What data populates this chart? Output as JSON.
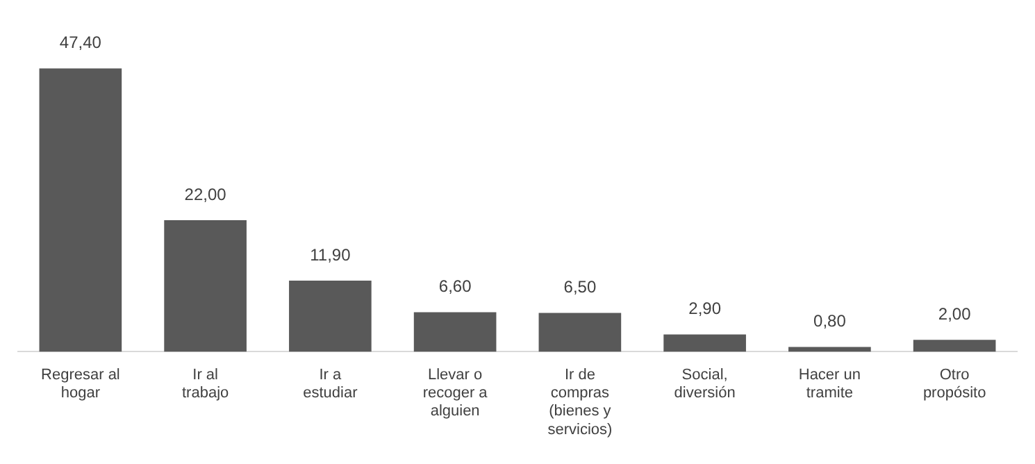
{
  "chart_data": {
    "type": "bar",
    "categories": [
      "Regresar al hogar",
      "Ir al trabajo",
      "Ir a estudiar",
      "Llevar o recoger a alguien",
      "Ir de compras (bienes y servicios)",
      "Social, diversión",
      "Hacer un tramite",
      "Otro propósito"
    ],
    "values": [
      47.4,
      22.0,
      11.9,
      6.6,
      6.5,
      2.9,
      0.8,
      2.0
    ],
    "value_labels": [
      "47,40",
      "22,00",
      "11,90",
      "6,60",
      "6,50",
      "2,90",
      "0,80",
      "2,00"
    ],
    "color": "#595959",
    "grid": false,
    "legend": false,
    "tick_labels": "x"
  }
}
